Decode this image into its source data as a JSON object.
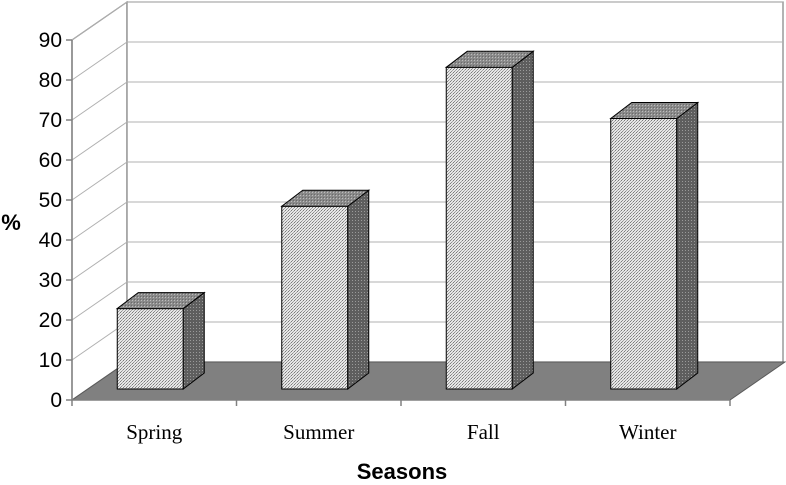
{
  "chart_data": {
    "type": "bar",
    "title": "",
    "xlabel": "Seasons",
    "ylabel": "%",
    "categories": [
      "Spring",
      "Summer",
      "Fall",
      "Winter"
    ],
    "values": [
      22,
      50,
      88,
      74
    ],
    "ylim": [
      0,
      90
    ],
    "yticks": [
      "0",
      "10",
      "20",
      "30",
      "40",
      "50",
      "60",
      "70",
      "80",
      "90"
    ],
    "grid": true,
    "legend": "none",
    "style": "3d",
    "colors": {
      "bar_front": "#dcdcdc",
      "bar_side": "#6b6b6b",
      "bar_top": "#8a8a8a",
      "floor": "#808080",
      "gridline": "#b0b0b0",
      "axis": "#808080"
    }
  }
}
